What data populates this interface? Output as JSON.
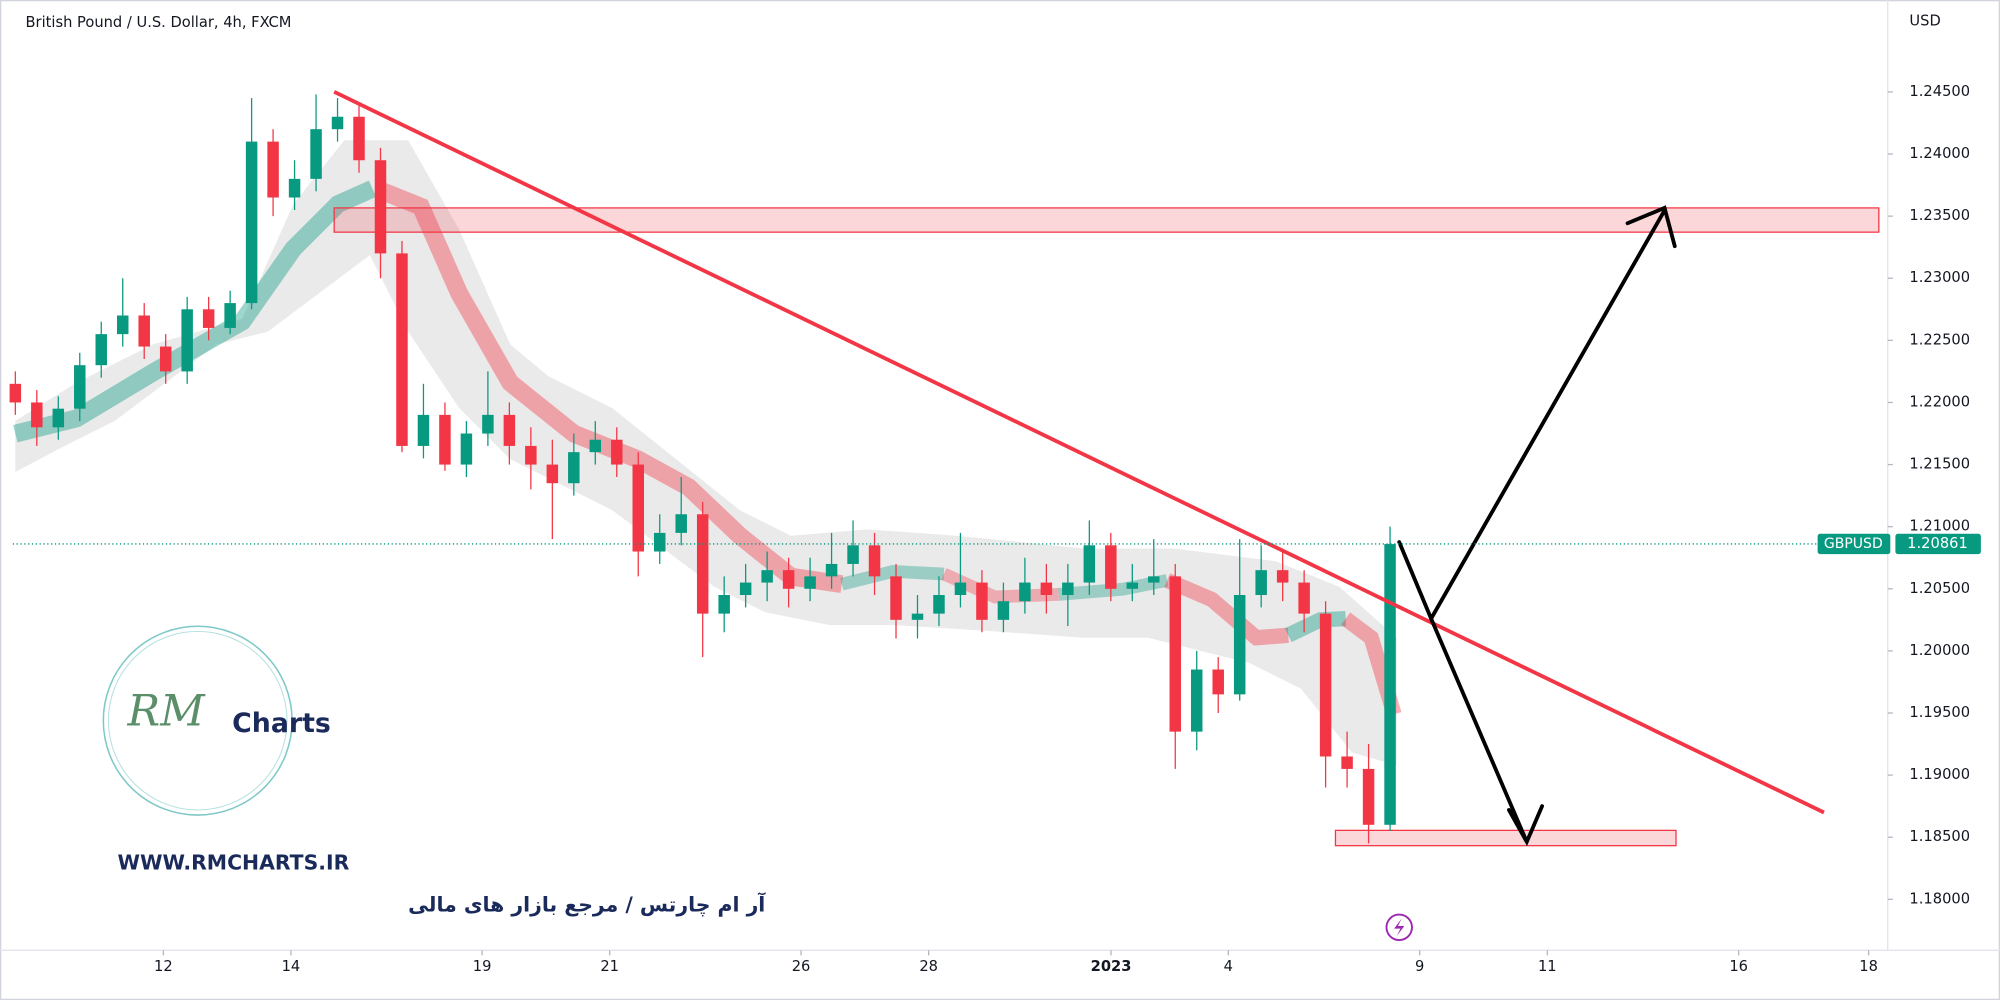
{
  "chart_data": {
    "type": "candlestick",
    "title": "British Pound / U.S. Dollar, 4h, FXCM",
    "currency": "USD",
    "symbol": "GBPUSD",
    "last_price": 1.20861,
    "up_color": "#089981",
    "down_color": "#f23645",
    "grid": false,
    "x": [
      0,
      1,
      2,
      3,
      4,
      5,
      6,
      7,
      8,
      9,
      10,
      11,
      12,
      13,
      14,
      15,
      16,
      17,
      18,
      19,
      20,
      21,
      22,
      23,
      24,
      25,
      26,
      27,
      28,
      29,
      30,
      31,
      32,
      33,
      34,
      35,
      36,
      37,
      38,
      39,
      40,
      41,
      42,
      43,
      44,
      45,
      46,
      47,
      48,
      49,
      50,
      51,
      52,
      53,
      54,
      55,
      56,
      57,
      58,
      59,
      60,
      61,
      62,
      63,
      64
    ],
    "open": [
      1.2215,
      1.22,
      1.218,
      1.2195,
      1.223,
      1.2255,
      1.227,
      1.2245,
      1.2225,
      1.2275,
      1.226,
      1.228,
      1.241,
      1.2365,
      1.238,
      1.242,
      1.243,
      1.2395,
      1.232,
      1.2165,
      1.219,
      1.215,
      1.2175,
      1.219,
      1.2165,
      1.215,
      1.2135,
      1.216,
      1.217,
      1.215,
      1.208,
      1.2095,
      1.211,
      1.203,
      1.2045,
      1.2055,
      1.2065,
      1.205,
      1.206,
      1.207,
      1.2085,
      1.206,
      1.2025,
      1.203,
      1.2045,
      1.2055,
      1.2025,
      1.204,
      1.2055,
      1.2045,
      1.2055,
      1.2085,
      1.205,
      1.2055,
      1.206,
      1.1935,
      1.1985,
      1.1965,
      1.2045,
      1.2065,
      1.2055,
      1.203,
      1.1915,
      1.1905,
      1.186
    ],
    "high": [
      1.2225,
      1.221,
      1.2205,
      1.224,
      1.2265,
      1.23,
      1.228,
      1.2255,
      1.2285,
      1.2285,
      1.229,
      1.2445,
      1.242,
      1.2395,
      1.2448,
      1.2445,
      1.244,
      1.2405,
      1.233,
      1.2215,
      1.22,
      1.2185,
      1.2225,
      1.22,
      1.218,
      1.217,
      1.2175,
      1.2185,
      1.218,
      1.216,
      1.211,
      1.214,
      1.212,
      1.206,
      1.207,
      1.208,
      1.2075,
      1.2075,
      1.2095,
      1.2105,
      1.2095,
      1.207,
      1.2045,
      1.206,
      1.2095,
      1.2065,
      1.2055,
      1.2075,
      1.207,
      1.207,
      1.2105,
      1.2095,
      1.207,
      1.209,
      1.207,
      1.2,
      1.1995,
      1.209,
      1.2085,
      1.208,
      1.2065,
      1.204,
      1.1935,
      1.1925,
      1.21
    ],
    "low": [
      1.219,
      1.2165,
      1.217,
      1.2185,
      1.222,
      1.2245,
      1.2235,
      1.2215,
      1.2215,
      1.225,
      1.2255,
      1.2275,
      1.235,
      1.2355,
      1.237,
      1.241,
      1.2385,
      1.23,
      1.216,
      1.2155,
      1.2145,
      1.214,
      1.2165,
      1.215,
      1.213,
      1.209,
      1.2125,
      1.215,
      1.214,
      1.206,
      1.207,
      1.2085,
      1.1995,
      1.2015,
      1.2035,
      1.204,
      1.2035,
      1.204,
      1.205,
      1.206,
      1.2045,
      1.201,
      1.201,
      1.202,
      1.2035,
      1.2015,
      1.2015,
      1.203,
      1.203,
      1.202,
      1.2045,
      1.204,
      1.204,
      1.2045,
      1.1905,
      1.192,
      1.195,
      1.196,
      1.2035,
      1.204,
      1.2015,
      1.189,
      1.189,
      1.1845,
      1.1855
    ],
    "close": [
      1.22,
      1.218,
      1.2195,
      1.223,
      1.2255,
      1.227,
      1.2245,
      1.2225,
      1.2275,
      1.226,
      1.228,
      1.241,
      1.2365,
      1.238,
      1.242,
      1.243,
      1.2395,
      1.232,
      1.2165,
      1.219,
      1.215,
      1.2175,
      1.219,
      1.2165,
      1.215,
      1.2135,
      1.216,
      1.217,
      1.215,
      1.208,
      1.2095,
      1.211,
      1.203,
      1.2045,
      1.2055,
      1.2065,
      1.205,
      1.206,
      1.207,
      1.2085,
      1.206,
      1.2025,
      1.203,
      1.2045,
      1.2055,
      1.2025,
      1.204,
      1.2055,
      1.2045,
      1.2055,
      1.2085,
      1.205,
      1.2055,
      1.206,
      1.1935,
      1.1985,
      1.1965,
      1.2045,
      1.2065,
      1.2055,
      1.203,
      1.1915,
      1.1905,
      1.186,
      1.2086
    ],
    "xlim": [
      -0.12,
      91.03
    ],
    "xticks": [
      {
        "value": 6.89,
        "label": "12"
      },
      {
        "value": 12.83,
        "label": "14"
      },
      {
        "value": 21.73,
        "label": "19"
      },
      {
        "value": 27.67,
        "label": "21"
      },
      {
        "value": 36.58,
        "label": "26"
      },
      {
        "value": 42.52,
        "label": "28"
      },
      {
        "value": 51.01,
        "label": "2023"
      },
      {
        "value": 56.47,
        "label": "4"
      },
      {
        "value": 65.38,
        "label": "9"
      },
      {
        "value": 71.32,
        "label": "11"
      },
      {
        "value": 80.23,
        "label": "16"
      },
      {
        "value": 86.28,
        "label": "18"
      }
    ],
    "ylim": [
      1.1759,
      1.2524
    ],
    "yticks": [
      {
        "value": 1.18,
        "label": "1.18000"
      },
      {
        "value": 1.185,
        "label": "1.18500"
      },
      {
        "value": 1.19,
        "label": "1.19000"
      },
      {
        "value": 1.195,
        "label": "1.19500"
      },
      {
        "value": 1.2,
        "label": "1.20000"
      },
      {
        "value": 1.205,
        "label": "1.20500"
      },
      {
        "value": 1.21,
        "label": "1.21000"
      },
      {
        "value": 1.215,
        "label": "1.21500"
      },
      {
        "value": 1.22,
        "label": "1.22000"
      },
      {
        "value": 1.225,
        "label": "1.22500"
      },
      {
        "value": 1.23,
        "label": "1.23000"
      },
      {
        "value": 1.235,
        "label": "1.23500"
      },
      {
        "value": 1.24,
        "label": "1.24000"
      },
      {
        "value": 1.245,
        "label": "1.24500"
      }
    ]
  },
  "watermark": {
    "logo": "RM",
    "brand": "Charts",
    "url": "WWW.RMCHARTS.IR",
    "tagline": "آر ام چارتس / مرجع بازار های مالی"
  }
}
